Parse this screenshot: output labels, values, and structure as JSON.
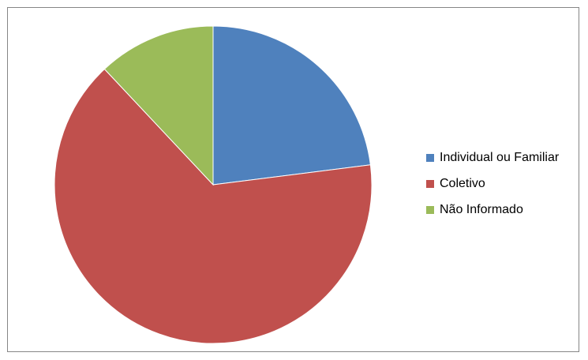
{
  "chart_data": {
    "type": "pie",
    "title": "",
    "categories": [
      "Individual ou Familiar",
      "Coletivo",
      "Não Informado"
    ],
    "values": [
      23,
      65,
      12
    ],
    "colors": [
      "#4F81BD",
      "#C0504D",
      "#9BBB59"
    ],
    "start_angle_deg": 0,
    "direction": "clockwise",
    "legend_position": "right"
  }
}
